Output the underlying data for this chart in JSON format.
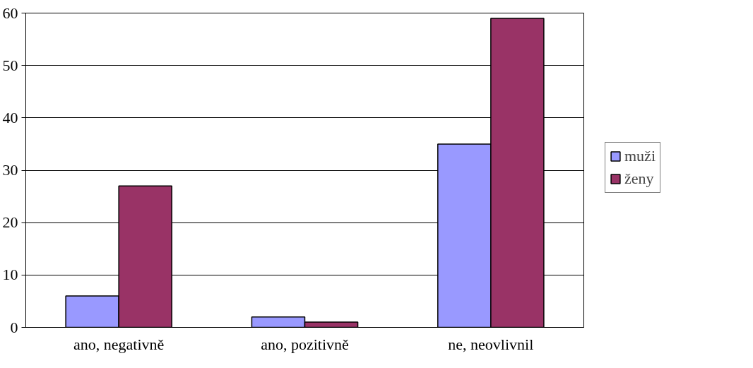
{
  "chart_data": {
    "type": "bar",
    "categories": [
      "ano, negativně",
      "ano, pozitivně",
      "ne, neovlivnil"
    ],
    "series": [
      {
        "name": "muži",
        "color": "#9999ff",
        "values": [
          6,
          2,
          35
        ]
      },
      {
        "name": "ženy",
        "color": "#993366",
        "values": [
          27,
          1,
          59
        ]
      }
    ],
    "ylim": [
      0,
      60
    ],
    "yticks": [
      0,
      10,
      20,
      30,
      40,
      50,
      60
    ],
    "grid": "y",
    "legend": "right"
  }
}
